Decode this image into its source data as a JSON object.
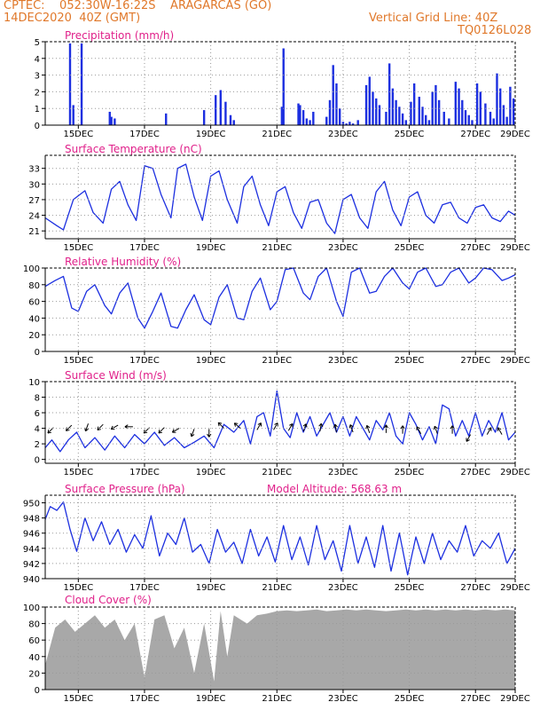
{
  "header": {
    "line1_left": "CPTEC:    052:30W-16:22S    ARAGARCAS (GO)",
    "line2_left": "14DEC2020  40Z (GMT)",
    "line1_right": "Vertical Grid Line: 40Z",
    "line2_right": "TQ0126L028"
  },
  "colors": {
    "header": "#e0782a",
    "panel_title": "#e0208a",
    "series": "#1c2fe0",
    "cloud_fill": "#a8a8a8",
    "grid": "#999999"
  },
  "x_tick_labels": [
    "15DEC",
    "17DEC",
    "19DEC",
    "21DEC",
    "23DEC",
    "25DEC",
    "27DEC",
    "29DEC"
  ],
  "chart_data": [
    {
      "type": "bar",
      "title": "Precipitation (mm/h)",
      "ylim": [
        0,
        5
      ],
      "yticks": [
        0,
        1,
        2,
        3,
        4,
        5
      ],
      "grid": true,
      "x_unit": "days since 14DEC2020 00Z",
      "x": [
        0.75,
        0.85,
        1.1,
        1.95,
        2.0,
        2.1,
        3.65,
        4.8,
        5.15,
        5.3,
        5.45,
        5.6,
        5.7,
        7.15,
        7.2,
        7.65,
        7.7,
        7.8,
        7.9,
        8.0,
        8.1,
        8.5,
        8.6,
        8.7,
        8.8,
        8.9,
        9.0,
        9.1,
        9.2,
        9.3,
        9.45,
        9.7,
        9.8,
        9.9,
        10.0,
        10.1,
        10.3,
        10.4,
        10.5,
        10.6,
        10.7,
        10.8,
        10.9,
        11.05,
        11.15,
        11.3,
        11.4,
        11.5,
        11.6,
        11.7,
        11.8,
        11.9,
        12.05,
        12.2,
        12.4,
        12.5,
        12.6,
        12.7,
        12.8,
        12.9,
        13.05,
        13.15,
        13.3,
        13.45,
        13.55,
        13.65,
        13.75,
        13.85,
        13.95,
        14.05,
        14.15
      ],
      "values": [
        4.9,
        1.2,
        4.9,
        0.8,
        0.5,
        0.4,
        0.7,
        0.9,
        1.8,
        2.1,
        1.4,
        0.6,
        0.3,
        1.1,
        4.6,
        1.3,
        1.2,
        0.9,
        0.4,
        0.3,
        0.8,
        0.5,
        1.5,
        3.6,
        2.5,
        1.0,
        0.2,
        0.1,
        0.2,
        0.1,
        0.3,
        2.4,
        2.9,
        2.0,
        1.6,
        1.2,
        0.8,
        3.7,
        2.2,
        1.5,
        1.1,
        0.7,
        0.3,
        1.4,
        2.5,
        1.7,
        1.1,
        0.6,
        0.3,
        2.0,
        2.4,
        1.5,
        0.8,
        0.4,
        2.6,
        2.2,
        1.5,
        0.9,
        0.6,
        0.3,
        2.5,
        2.0,
        1.3,
        0.8,
        0.4,
        3.1,
        2.2,
        1.2,
        0.5,
        2.3,
        1.6
      ]
    },
    {
      "type": "line",
      "title": "Surface Temperature (nC)",
      "ylim": [
        19.5,
        35.5
      ],
      "yticks": [
        21,
        24,
        27,
        30,
        33
      ],
      "grid": true,
      "x_unit": "days since 14DEC2020 00Z",
      "x": [
        0,
        0.35,
        0.55,
        0.85,
        1.2,
        1.45,
        1.75,
        2.0,
        2.25,
        2.5,
        2.75,
        3.0,
        3.25,
        3.5,
        3.8,
        4.0,
        4.25,
        4.5,
        4.75,
        5.0,
        5.25,
        5.5,
        5.8,
        6.0,
        6.25,
        6.5,
        6.75,
        7.0,
        7.25,
        7.5,
        7.75,
        8.0,
        8.25,
        8.5,
        8.75,
        9.0,
        9.25,
        9.5,
        9.75,
        10.0,
        10.25,
        10.5,
        10.75,
        11.0,
        11.25,
        11.5,
        11.75,
        12.0,
        12.25,
        12.5,
        12.75,
        13.0,
        13.25,
        13.5,
        13.75,
        14.0,
        14.2
      ],
      "values": [
        23.5,
        22.0,
        21.2,
        27.0,
        28.7,
        24.5,
        22.5,
        29.0,
        30.5,
        26.0,
        23.0,
        33.5,
        33.0,
        28.0,
        23.5,
        33.0,
        33.8,
        27.5,
        23.0,
        31.5,
        32.5,
        27.0,
        22.5,
        29.5,
        31.5,
        26.0,
        22.0,
        28.5,
        29.5,
        24.5,
        21.5,
        26.5,
        27.0,
        22.5,
        20.5,
        27.0,
        28.0,
        23.5,
        21.5,
        28.5,
        30.5,
        25.0,
        22.0,
        27.5,
        28.5,
        24.0,
        22.5,
        26.0,
        26.5,
        23.5,
        22.5,
        25.5,
        26.0,
        23.5,
        22.8,
        24.8,
        24.0
      ]
    },
    {
      "type": "line",
      "title": "Relative Humidity (%)",
      "ylim": [
        0,
        100
      ],
      "yticks": [
        0,
        20,
        40,
        60,
        80,
        100
      ],
      "grid": true,
      "x_unit": "days since 14DEC2020 00Z",
      "x": [
        0,
        0.3,
        0.55,
        0.8,
        1.0,
        1.25,
        1.5,
        1.8,
        2.0,
        2.25,
        2.5,
        2.8,
        3.0,
        3.25,
        3.5,
        3.8,
        4.0,
        4.25,
        4.5,
        4.8,
        5.0,
        5.25,
        5.5,
        5.8,
        6.0,
        6.25,
        6.5,
        6.8,
        7.0,
        7.25,
        7.5,
        7.8,
        8.0,
        8.25,
        8.5,
        8.8,
        9.0,
        9.25,
        9.5,
        9.8,
        10.0,
        10.25,
        10.5,
        10.8,
        11.0,
        11.25,
        11.5,
        11.8,
        12.0,
        12.25,
        12.5,
        12.8,
        13.0,
        13.25,
        13.5,
        13.8,
        14.0,
        14.2
      ],
      "values": [
        78,
        85,
        90,
        52,
        48,
        72,
        80,
        55,
        45,
        70,
        82,
        40,
        28,
        48,
        70,
        30,
        28,
        50,
        68,
        38,
        32,
        65,
        80,
        40,
        38,
        72,
        88,
        50,
        60,
        98,
        100,
        70,
        62,
        90,
        100,
        60,
        42,
        95,
        100,
        70,
        72,
        90,
        100,
        82,
        75,
        95,
        100,
        78,
        80,
        95,
        100,
        82,
        88,
        100,
        98,
        85,
        88,
        92
      ]
    },
    {
      "type": "line",
      "title": "Surface Wind (m/s)",
      "ylim": [
        -0.5,
        10
      ],
      "yticks": [
        0,
        2,
        4,
        6,
        8,
        10
      ],
      "grid": true,
      "x_unit": "days since 14DEC2020 00Z",
      "x": [
        0,
        0.2,
        0.45,
        0.7,
        0.95,
        1.2,
        1.5,
        1.8,
        2.1,
        2.4,
        2.7,
        3.0,
        3.3,
        3.6,
        3.9,
        4.2,
        4.5,
        4.8,
        5.1,
        5.4,
        5.7,
        6.0,
        6.2,
        6.4,
        6.6,
        6.8,
        7.0,
        7.2,
        7.4,
        7.6,
        7.8,
        8.0,
        8.2,
        8.4,
        8.6,
        8.8,
        9.0,
        9.2,
        9.4,
        9.6,
        9.8,
        10.0,
        10.2,
        10.4,
        10.6,
        10.8,
        11.0,
        11.2,
        11.4,
        11.6,
        11.8,
        12.0,
        12.2,
        12.4,
        12.6,
        12.8,
        13.0,
        13.2,
        13.4,
        13.6,
        13.8,
        14.0,
        14.2
      ],
      "values": [
        1.5,
        2.5,
        1.0,
        2.5,
        3.5,
        1.5,
        2.8,
        1.2,
        3.0,
        1.5,
        3.2,
        2.0,
        3.5,
        1.8,
        2.8,
        1.5,
        2.2,
        3.0,
        1.5,
        4.5,
        3.5,
        5.0,
        2.0,
        5.5,
        6.0,
        3.0,
        8.8,
        4.0,
        2.8,
        6.0,
        3.5,
        5.5,
        3.0,
        4.5,
        6.0,
        3.5,
        5.5,
        3.0,
        5.5,
        4.0,
        2.5,
        5.0,
        3.8,
        6.0,
        3.0,
        2.0,
        6.0,
        4.5,
        2.5,
        4.2,
        2.0,
        7.0,
        6.5,
        3.0,
        5.0,
        3.0,
        6.0,
        3.0,
        5.0,
        3.5,
        6.0,
        2.5,
        3.5
      ],
      "arrows": [
        {
          "x": 0.25,
          "y": 4.1,
          "dir": 225
        },
        {
          "x": 0.8,
          "y": 4.4,
          "dir": 225
        },
        {
          "x": 1.3,
          "y": 4.6,
          "dir": 200
        },
        {
          "x": 1.75,
          "y": 4.5,
          "dir": 225
        },
        {
          "x": 2.2,
          "y": 4.4,
          "dir": 240
        },
        {
          "x": 2.65,
          "y": 4.2,
          "dir": 270
        },
        {
          "x": 3.15,
          "y": 4.1,
          "dir": 225
        },
        {
          "x": 3.6,
          "y": 4.1,
          "dir": 225
        },
        {
          "x": 4.05,
          "y": 4.0,
          "dir": 240
        },
        {
          "x": 4.5,
          "y": 3.9,
          "dir": 200
        },
        {
          "x": 4.95,
          "y": 3.9,
          "dir": 180
        },
        {
          "x": 5.4,
          "y": 4.0,
          "dir": 315
        },
        {
          "x": 5.9,
          "y": 4.0,
          "dir": 310
        },
        {
          "x": 6.4,
          "y": 3.8,
          "dir": 30
        },
        {
          "x": 6.9,
          "y": 3.8,
          "dir": 30
        },
        {
          "x": 7.35,
          "y": 3.7,
          "dir": 30
        },
        {
          "x": 7.8,
          "y": 3.6,
          "dir": 20
        },
        {
          "x": 8.3,
          "y": 3.6,
          "dir": 10
        },
        {
          "x": 8.8,
          "y": 3.5,
          "dir": 350
        },
        {
          "x": 9.3,
          "y": 3.5,
          "dir": 340
        },
        {
          "x": 9.8,
          "y": 3.4,
          "dir": 340
        },
        {
          "x": 10.3,
          "y": 3.4,
          "dir": 0
        },
        {
          "x": 10.8,
          "y": 3.3,
          "dir": 0
        },
        {
          "x": 11.35,
          "y": 3.3,
          "dir": 330
        },
        {
          "x": 11.85,
          "y": 3.3,
          "dir": 340
        },
        {
          "x": 12.3,
          "y": 3.3,
          "dir": 0
        },
        {
          "x": 12.85,
          "y": 3.2,
          "dir": 210
        },
        {
          "x": 13.35,
          "y": 3.2,
          "dir": 30
        },
        {
          "x": 13.8,
          "y": 3.2,
          "dir": 330
        }
      ]
    },
    {
      "type": "line",
      "title": "Surface Pressure (hPa)",
      "annotation": "Model Altitude: 568.63 m",
      "ylim": [
        940,
        951
      ],
      "yticks": [
        940,
        942,
        944,
        946,
        948,
        950
      ],
      "grid": true,
      "x_unit": "days since 14DEC2020 00Z",
      "x": [
        0,
        0.15,
        0.35,
        0.55,
        0.75,
        0.95,
        1.2,
        1.45,
        1.7,
        1.95,
        2.2,
        2.45,
        2.7,
        2.95,
        3.2,
        3.45,
        3.7,
        3.95,
        4.2,
        4.45,
        4.7,
        4.95,
        5.2,
        5.45,
        5.7,
        5.95,
        6.2,
        6.45,
        6.7,
        6.95,
        7.2,
        7.45,
        7.7,
        7.95,
        8.2,
        8.45,
        8.7,
        8.95,
        9.2,
        9.45,
        9.7,
        9.95,
        10.2,
        10.45,
        10.7,
        10.95,
        11.2,
        11.45,
        11.7,
        11.95,
        12.2,
        12.45,
        12.7,
        12.95,
        13.2,
        13.45,
        13.7,
        13.95,
        14.2
      ],
      "values": [
        947.8,
        949.5,
        949.0,
        950.1,
        946.5,
        943.6,
        948.0,
        945.0,
        947.5,
        944.5,
        946.5,
        943.5,
        945.8,
        944.0,
        948.3,
        943.0,
        946.0,
        944.5,
        948.0,
        943.5,
        944.5,
        942.0,
        946.5,
        943.5,
        944.8,
        942.0,
        946.5,
        943.0,
        945.5,
        942.2,
        947.0,
        942.5,
        945.5,
        941.8,
        947.0,
        942.5,
        945.0,
        941.0,
        947.0,
        942.0,
        945.5,
        941.5,
        947.0,
        941.0,
        946.0,
        940.5,
        945.5,
        942.0,
        946.0,
        942.5,
        945.0,
        943.5,
        947.0,
        943.0,
        945.0,
        944.0,
        946.0,
        942.0,
        944.0
      ]
    },
    {
      "type": "area",
      "title": "Cloud Cover (%)",
      "ylim": [
        0,
        100
      ],
      "yticks": [
        0,
        20,
        40,
        60,
        80,
        100
      ],
      "grid": true,
      "x_unit": "days since 14DEC2020 00Z",
      "x": [
        0,
        0.3,
        0.6,
        0.9,
        1.2,
        1.5,
        1.8,
        2.1,
        2.4,
        2.7,
        3.0,
        3.3,
        3.6,
        3.9,
        4.2,
        4.5,
        4.8,
        5.1,
        5.3,
        5.5,
        5.7,
        5.9,
        6.1,
        6.4,
        6.7,
        7.0,
        7.3,
        7.6,
        7.9,
        8.2,
        8.5,
        8.8,
        9.1,
        9.4,
        9.7,
        10.0,
        10.3,
        10.6,
        10.9,
        11.2,
        11.5,
        11.8,
        12.1,
        12.4,
        12.7,
        13.0,
        13.3,
        13.6,
        13.9,
        14.2
      ],
      "values": [
        30,
        75,
        85,
        70,
        80,
        90,
        75,
        85,
        60,
        80,
        15,
        85,
        90,
        50,
        75,
        20,
        80,
        10,
        95,
        40,
        90,
        85,
        80,
        90,
        92,
        95,
        96,
        95,
        96,
        97,
        95,
        96,
        97,
        96,
        97,
        96,
        95,
        96,
        97,
        96,
        97,
        96,
        97,
        96,
        97,
        96,
        97,
        96,
        97,
        96
      ]
    }
  ],
  "panel_titles": {
    "precip": "Precipitation (mm/h)",
    "temp": "Surface Temperature (nC)",
    "rh": "Relative Humidity (%)",
    "wind": "Surface Wind (m/s)",
    "pres": "Surface Pressure (hPa)",
    "pres_annot": "Model Altitude: 568.63 m",
    "cloud": "Cloud Cover (%)"
  }
}
